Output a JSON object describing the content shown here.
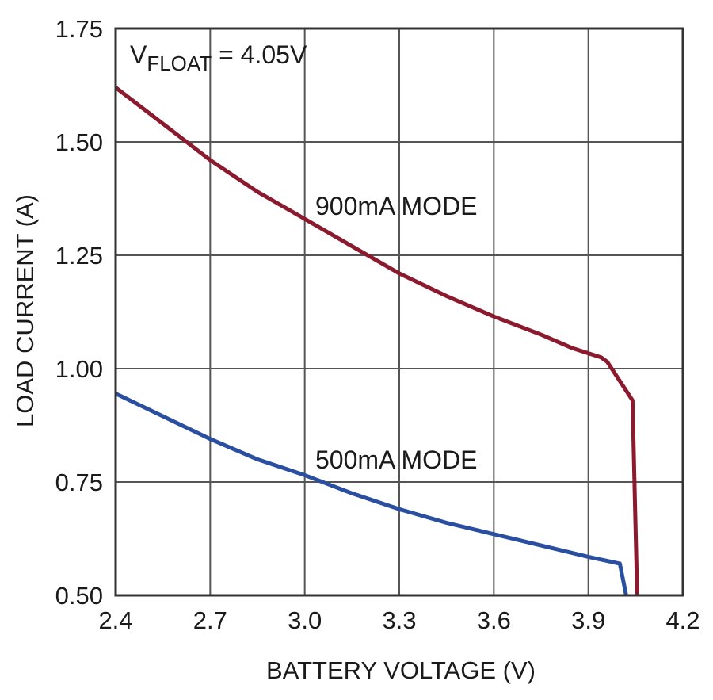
{
  "chart_data": {
    "type": "line",
    "title": "",
    "xlabel": "BATTERY VOLTAGE (V)",
    "ylabel": "LOAD CURRENT (A)",
    "xlim": [
      2.4,
      4.2
    ],
    "ylim": [
      0.5,
      1.75
    ],
    "xticks": [
      "2.4",
      "2.7",
      "3.0",
      "3.3",
      "3.6",
      "3.9",
      "4.2"
    ],
    "yticks": [
      "0.50",
      "0.75",
      "1.00",
      "1.25",
      "1.50",
      "1.75"
    ],
    "grid": true,
    "annotation": {
      "prefix": "V",
      "subscript": "FLOAT",
      "suffix": " = 4.05V"
    },
    "series": [
      {
        "name": "900mA MODE",
        "color": "#8b1a2e",
        "x": [
          2.4,
          2.55,
          2.7,
          2.85,
          3.0,
          3.15,
          3.3,
          3.45,
          3.6,
          3.75,
          3.85,
          3.94,
          3.96,
          4.04,
          4.055
        ],
        "y": [
          1.62,
          1.54,
          1.46,
          1.39,
          1.33,
          1.27,
          1.21,
          1.16,
          1.115,
          1.075,
          1.045,
          1.025,
          1.015,
          0.93,
          0.5
        ]
      },
      {
        "name": "500mA MODE",
        "color": "#2a4ea0",
        "x": [
          2.4,
          2.55,
          2.7,
          2.85,
          3.0,
          3.15,
          3.3,
          3.45,
          3.6,
          3.75,
          3.9,
          4.0,
          4.02
        ],
        "y": [
          0.945,
          0.895,
          0.845,
          0.8,
          0.765,
          0.725,
          0.69,
          0.66,
          0.635,
          0.61,
          0.585,
          0.57,
          0.5
        ]
      }
    ]
  }
}
